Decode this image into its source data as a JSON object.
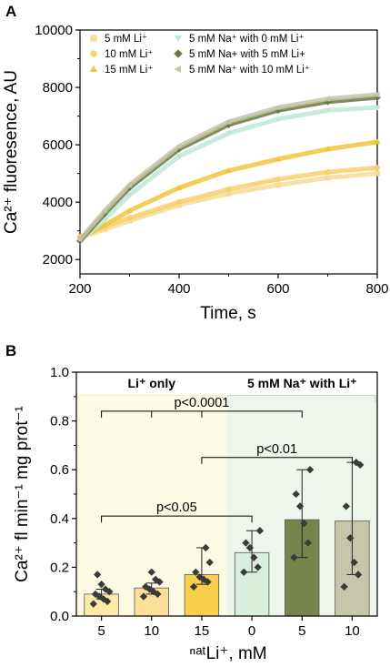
{
  "panels": {
    "a": {
      "letter": "A"
    },
    "b": {
      "letter": "B"
    }
  },
  "chart_data": [
    {
      "type": "scatter",
      "xlabel": "Time, s",
      "ylabel": "Ca²⁺ fluoresence, AU",
      "xlim": [
        200,
        800
      ],
      "ylim": [
        1500,
        10000
      ],
      "xticks": [
        "200",
        "400",
        "600",
        "800"
      ],
      "yticks": [
        "2000",
        "4000",
        "6000",
        "8000",
        "10000"
      ],
      "legend_position": "top",
      "series": [
        {
          "name": "5 mM Li⁺",
          "marker": "square",
          "color": "#f6dc9a",
          "x": [
            200,
            250,
            300,
            400,
            500,
            600,
            700,
            800
          ],
          "y": [
            2750,
            3050,
            3350,
            3900,
            4300,
            4600,
            4850,
            5000
          ]
        },
        {
          "name": "10 mM Li⁺",
          "marker": "circle",
          "color": "#f9cf6a",
          "x": [
            200,
            250,
            300,
            400,
            500,
            600,
            700,
            800
          ],
          "y": [
            2800,
            3150,
            3450,
            4000,
            4450,
            4800,
            5050,
            5200
          ]
        },
        {
          "name": "15 mM Li⁺",
          "marker": "triangle-up",
          "color": "#f2c33b",
          "x": [
            200,
            250,
            300,
            400,
            500,
            600,
            700,
            800
          ],
          "y": [
            2750,
            3200,
            3700,
            4500,
            5100,
            5500,
            5850,
            6100
          ]
        },
        {
          "name": "5 mM Na⁺ with 0 mM Li⁺",
          "marker": "triangle-down",
          "color": "#bfe7d8",
          "x": [
            200,
            250,
            300,
            400,
            500,
            600,
            700,
            800
          ],
          "y": [
            2650,
            3400,
            4250,
            5600,
            6400,
            6900,
            7200,
            7300
          ]
        },
        {
          "name": "5 mM Na+ with 5 mM Li+",
          "marker": "diamond",
          "color": "#66793f",
          "x": [
            200,
            250,
            300,
            400,
            500,
            600,
            700,
            800
          ],
          "y": [
            2650,
            3600,
            4500,
            5850,
            6700,
            7200,
            7500,
            7650
          ]
        },
        {
          "name": "5 mM Na⁺ with 10 mM Li⁺",
          "marker": "triangle-left",
          "color": "#c4c4a6",
          "x": [
            200,
            250,
            300,
            400,
            500,
            600,
            700,
            800
          ],
          "y": [
            2700,
            3700,
            4600,
            5950,
            6800,
            7300,
            7600,
            7750
          ]
        }
      ]
    },
    {
      "type": "bar",
      "xlabel": "ⁿᵃᵗLi⁺, mM",
      "ylabel": "Ca²⁺ fl min⁻¹ mg prot⁻¹",
      "ylim": [
        0,
        1.0
      ],
      "yticks": [
        "0.0",
        "0.2",
        "0.4",
        "0.6",
        "0.8",
        "1.0"
      ],
      "categories": [
        "5",
        "10",
        "15",
        "0",
        "5",
        "10"
      ],
      "values": [
        0.09,
        0.115,
        0.17,
        0.26,
        0.395,
        0.39
      ],
      "error_low": [
        0.07,
        0.09,
        0.13,
        0.18,
        0.24,
        0.17
      ],
      "error_high": [
        0.11,
        0.135,
        0.28,
        0.35,
        0.6,
        0.63
      ],
      "bar_colors": [
        "#fde9a8",
        "#fce09a",
        "#f9cf4c",
        "#d9efdc",
        "#76854b",
        "#c6c6ab"
      ],
      "points": [
        [
          0.05,
          0.06,
          0.07,
          0.08,
          0.09,
          0.1,
          0.11,
          0.13,
          0.17
        ],
        [
          0.08,
          0.09,
          0.1,
          0.11,
          0.12,
          0.14,
          0.15,
          0.18
        ],
        [
          0.12,
          0.14,
          0.15,
          0.16,
          0.18,
          0.22,
          0.28
        ],
        [
          0.18,
          0.2,
          0.24,
          0.28,
          0.3,
          0.35
        ],
        [
          0.24,
          0.3,
          0.38,
          0.45,
          0.5,
          0.6
        ],
        [
          0.12,
          0.17,
          0.22,
          0.32,
          0.45,
          0.62,
          0.63
        ]
      ],
      "groups": [
        {
          "label": "Li⁺ only",
          "color": "#fdfbe4",
          "line": "#f8eec0"
        },
        {
          "label": "5 mM Na⁺ with Li⁺",
          "color": "#eef6ec",
          "line": "#b9dfb0"
        }
      ],
      "annotations": [
        {
          "text": "p<0.0001",
          "from": 0,
          "to": 4,
          "y": 0.84
        },
        {
          "text": "p<0.01",
          "from": 2,
          "to": 5,
          "y": 0.65
        },
        {
          "text": "p<0.05",
          "from": 0,
          "to": 3,
          "y": 0.41
        }
      ]
    }
  ]
}
